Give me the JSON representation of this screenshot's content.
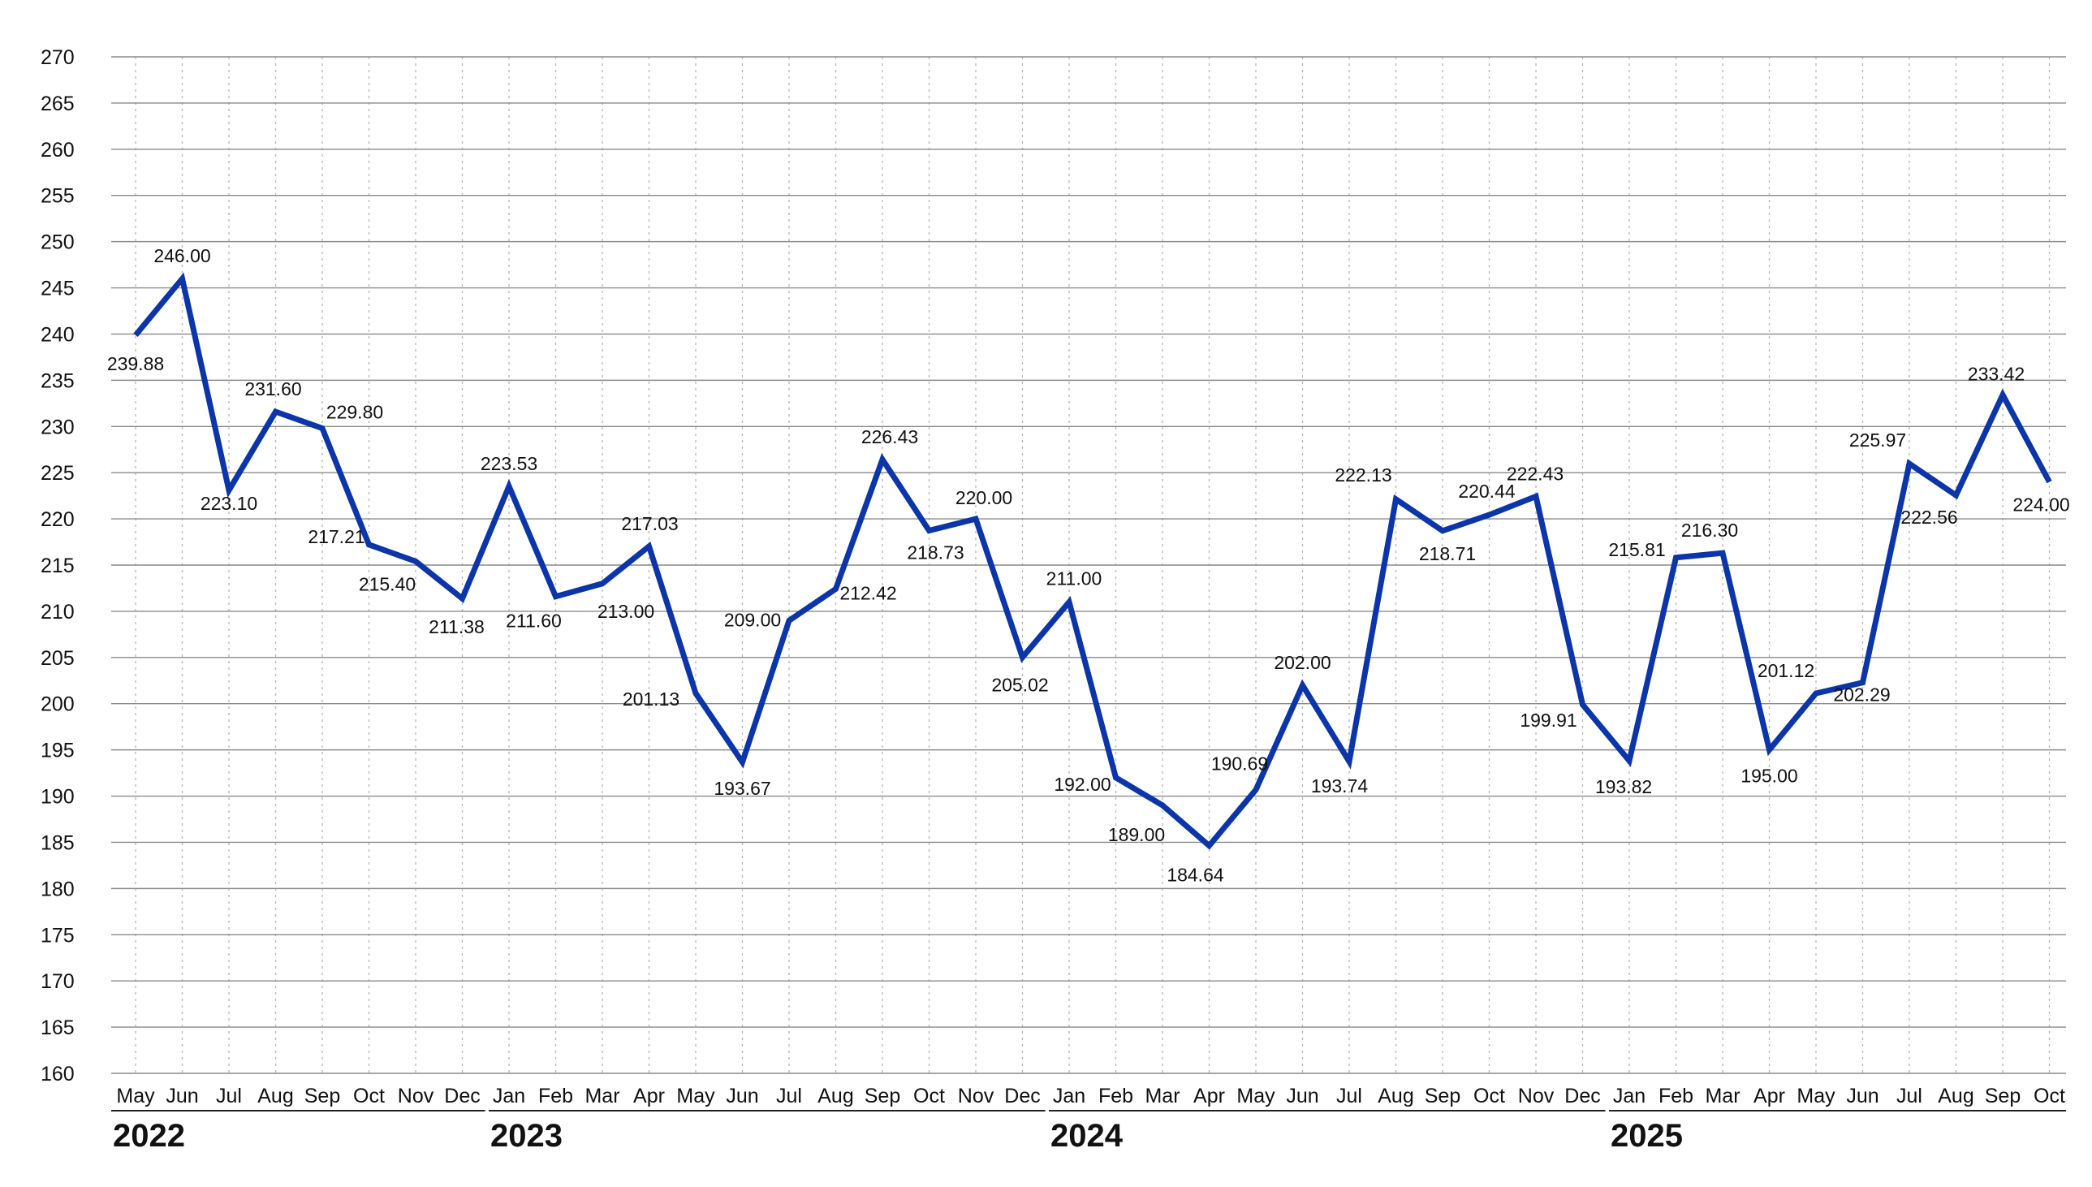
{
  "chart_data": {
    "type": "line",
    "title": "",
    "xlabel": "",
    "ylabel": "",
    "ylim": [
      160,
      270
    ],
    "y_ticks": [
      160,
      165,
      170,
      175,
      180,
      185,
      190,
      195,
      200,
      205,
      210,
      215,
      220,
      225,
      230,
      235,
      240,
      245,
      250,
      255,
      260,
      265,
      270
    ],
    "grid": "horizontal solid, vertical dotted",
    "legend": "none",
    "line_color": "#0b35a8",
    "categories": [
      "May",
      "Jun",
      "Jul",
      "Aug",
      "Sep",
      "Oct",
      "Nov",
      "Dec",
      "Jan",
      "Feb",
      "Mar",
      "Apr",
      "May",
      "Jun",
      "Jul",
      "Aug",
      "Sep",
      "Oct",
      "Nov",
      "Dec",
      "Jan",
      "Feb",
      "Mar",
      "Apr",
      "May",
      "Jun",
      "Jul",
      "Aug",
      "Sep",
      "Oct",
      "Nov",
      "Dec",
      "Jan",
      "Feb",
      "Mar",
      "Apr",
      "May",
      "Jun",
      "Jul",
      "Aug",
      "Sep",
      "Oct"
    ],
    "years": [
      {
        "label": "2022",
        "start_index": 0
      },
      {
        "label": "2023",
        "start_index": 8
      },
      {
        "label": "2024",
        "start_index": 20
      },
      {
        "label": "2025",
        "start_index": 32
      }
    ],
    "series": [
      {
        "values": [
          239.88,
          246.0,
          223.1,
          231.6,
          229.8,
          217.21,
          215.4,
          211.38,
          223.53,
          211.6,
          213.0,
          217.03,
          201.13,
          193.67,
          209.0,
          212.42,
          226.43,
          218.73,
          220.0,
          205.02,
          211.0,
          192.0,
          189.0,
          184.64,
          190.69,
          202.0,
          193.74,
          222.13,
          218.71,
          220.44,
          222.43,
          199.91,
          193.82,
          215.81,
          216.3,
          195.0,
          201.12,
          202.29,
          225.97,
          222.56,
          233.42,
          224.0
        ],
        "labels": [
          "239.88",
          "246.00",
          "223.10",
          "231.60",
          "229.80",
          "217.21",
          "215.40",
          "211.38",
          "223.53",
          "211.60",
          "213.00",
          "217.03",
          "201.13",
          "193.67",
          "209.00",
          "212.42",
          "226.43",
          "218.73",
          "220.00",
          "205.02",
          "211.00",
          "192.00",
          "189.00",
          "184.64",
          "190.69",
          "202.00",
          "193.74",
          "222.13",
          "218.71",
          "220.44",
          "222.43",
          "199.91",
          "193.82",
          "215.81",
          "216.30",
          "195.00",
          "201.12",
          "202.29",
          "225.97",
          "222.56",
          "233.42",
          "224.00"
        ]
      }
    ]
  }
}
